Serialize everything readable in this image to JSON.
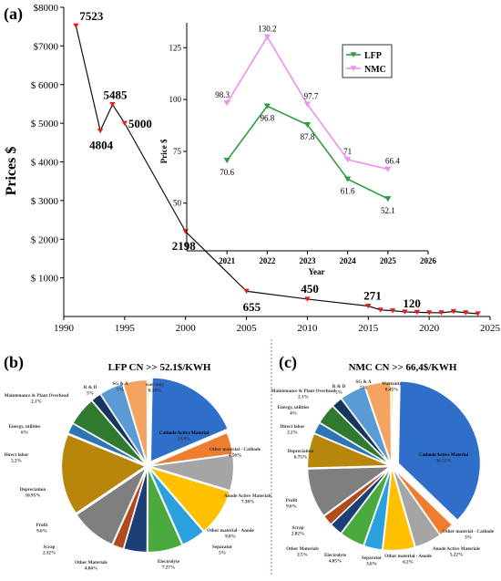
{
  "chart_data": [
    {
      "panel": "(a)",
      "type": "line",
      "ylabel": "Prices $",
      "xlim": [
        1990,
        2025
      ],
      "ylim": [
        0,
        8000
      ],
      "x_ticks": [
        "1990",
        "1995",
        "2000",
        "2005",
        "2010",
        "2015",
        "2020",
        "2025"
      ],
      "y_ticks": [
        "$ 1000",
        "$ 2000",
        "$ 3000",
        "$ 4000",
        "$ 5000",
        "$ 6000",
        "$7000",
        "$8000"
      ],
      "x": [
        1991,
        1993,
        1994,
        1995,
        2000,
        2005,
        2010,
        2015,
        2016,
        2017,
        2018,
        2019,
        2020,
        2021,
        2022,
        2023,
        2024
      ],
      "values": [
        7523,
        4804,
        5485,
        5000,
        2198,
        655,
        450,
        271,
        170,
        150,
        120,
        110,
        100,
        98,
        130,
        98,
        71
      ],
      "point_labels": [
        {
          "x": 1991,
          "text": "7523"
        },
        {
          "x": 1993,
          "text": "4804"
        },
        {
          "x": 1994,
          "text": "5485"
        },
        {
          "x": 1995,
          "text": "5000"
        },
        {
          "x": 2000,
          "text": "2198"
        },
        {
          "x": 2005,
          "text": "655"
        },
        {
          "x": 2010,
          "text": "450"
        },
        {
          "x": 2015,
          "text": "271"
        },
        {
          "x": 2018,
          "text": "120"
        }
      ],
      "colors": {
        "line": "#111111",
        "marker": "#e02020"
      }
    },
    {
      "panel": "inset",
      "type": "line",
      "xlabel": "Year",
      "ylabel": "Price $",
      "xlim": [
        2020,
        2026
      ],
      "ylim": [
        27,
        137
      ],
      "x_ticks": [
        "2021",
        "2022",
        "2023",
        "2024",
        "2025",
        "2026"
      ],
      "y_ticks": [
        "50",
        "75",
        "100",
        "125"
      ],
      "legend": "top-right",
      "series": [
        {
          "name": "LFP",
          "color": "#2e9e3e",
          "x": [
            2021,
            2022,
            2023,
            2024,
            2025
          ],
          "values": [
            70.6,
            96.8,
            87.8,
            61.6,
            52.1
          ],
          "labels": [
            "70.6",
            "96.8",
            "87.8",
            "61.6",
            "52.1"
          ]
        },
        {
          "name": "NMC",
          "color": "#ee90ee",
          "x": [
            2021,
            2022,
            2023,
            2024,
            2025
          ],
          "values": [
            98.3,
            130.2,
            97.7,
            71,
            66.4
          ],
          "labels": [
            "98.3",
            "130.2",
            "97.7",
            "71",
            "66.4"
          ]
        }
      ]
    },
    {
      "panel": "(b)",
      "type": "pie",
      "title": "LFP CN >> 52.1$/KWH",
      "slices": [
        {
          "label": "Cathode Active Material",
          "pct": "19.8%",
          "value": 19.8,
          "color": "#2f6fc9"
        },
        {
          "label": "Other material - Cathode",
          "pct": "4.56%",
          "value": 4.56,
          "color": "#ef7d2f"
        },
        {
          "label": "Anode Active Materials",
          "pct": "7.38%",
          "value": 7.38,
          "color": "#a5a5a5"
        },
        {
          "label": "Other material - Anode",
          "pct": "9.8%",
          "value": 9.8,
          "color": "#ffc000"
        },
        {
          "label": "Separator",
          "pct": "5%",
          "value": 5,
          "color": "#2aa0dc"
        },
        {
          "label": "Electrolyte",
          "pct": "7.27%",
          "value": 7.27,
          "color": "#4aaa3e"
        },
        {
          "label": "Other Materials",
          "pct": "4.84%",
          "value": 4.84,
          "color": "#1c3f78"
        },
        {
          "label": "Scrap",
          "pct": "2.32%",
          "value": 2.32,
          "color": "#b34a1e"
        },
        {
          "label": "Profit",
          "pct": "9.6%",
          "value": 9.6,
          "color": "#7f7f7f"
        },
        {
          "label": "Depreciation",
          "pct": "16.95%",
          "value": 16.95,
          "color": "#b8860b"
        },
        {
          "label": "Direct labor",
          "pct": "2.2%",
          "value": 2.2,
          "color": "#2e75b6"
        },
        {
          "label": "Energy, utilities",
          "pct": "6%",
          "value": 6,
          "color": "#2f7a2f"
        },
        {
          "label": "Maintenance & Plant Overhead",
          "pct": "2.1%",
          "value": 2.1,
          "color": "#17365d"
        },
        {
          "label": "R & D",
          "pct": "5%",
          "value": 5,
          "color": "#5b9bd5"
        },
        {
          "label": "SG & A",
          "pct": "5%",
          "value": 5,
          "color": "#f4a460"
        },
        {
          "label": "warranty",
          "pct": "0.38%",
          "value": 0.38,
          "color": "#ffd966"
        }
      ]
    },
    {
      "panel": "(c)",
      "type": "pie",
      "title": "NMC CN >> 66,4$/KWH",
      "slices": [
        {
          "label": "Cathode Active Material",
          "pct": "36.51%",
          "value": 36.51,
          "color": "#2f6fc9"
        },
        {
          "label": "Other material - Cathode",
          "pct": "3%",
          "value": 3,
          "color": "#ef7d2f"
        },
        {
          "label": "Anode Active Materials",
          "pct": "5.22%",
          "value": 5.22,
          "color": "#a5a5a5"
        },
        {
          "label": "Other material - Anode",
          "pct": "6.2%",
          "value": 6.2,
          "color": "#ffc000"
        },
        {
          "label": "Separator",
          "pct": "3.6%",
          "value": 3.6,
          "color": "#2aa0dc"
        },
        {
          "label": "Electrolyte",
          "pct": "4.85%",
          "value": 4.85,
          "color": "#4aaa3e"
        },
        {
          "label": "Other Materials",
          "pct": "2.5%",
          "value": 2.5,
          "color": "#1c3f78"
        },
        {
          "label": "Scrap",
          "pct": "2.02%",
          "value": 2.02,
          "color": "#b34a1e"
        },
        {
          "label": "Profit",
          "pct": "9.6%",
          "value": 9.6,
          "color": "#7f7f7f"
        },
        {
          "label": "Depreciation",
          "pct": "6.75%",
          "value": 6.75,
          "color": "#b8860b"
        },
        {
          "label": "Direct labor",
          "pct": "2.2%",
          "value": 2.2,
          "color": "#2e75b6"
        },
        {
          "label": "Energy, utilities",
          "pct": "4%",
          "value": 4,
          "color": "#2f7a2f"
        },
        {
          "label": "Maintenance & Plant Overhead",
          "pct": "2.1%",
          "value": 2.1,
          "color": "#17365d"
        },
        {
          "label": "R & D",
          "pct": "5%",
          "value": 5,
          "color": "#5b9bd5"
        },
        {
          "label": "SG & A",
          "pct": "5%",
          "value": 5,
          "color": "#f4a460"
        },
        {
          "label": "Warranty",
          "pct": "0.45%",
          "value": 0.45,
          "color": "#ffd966"
        }
      ]
    }
  ]
}
